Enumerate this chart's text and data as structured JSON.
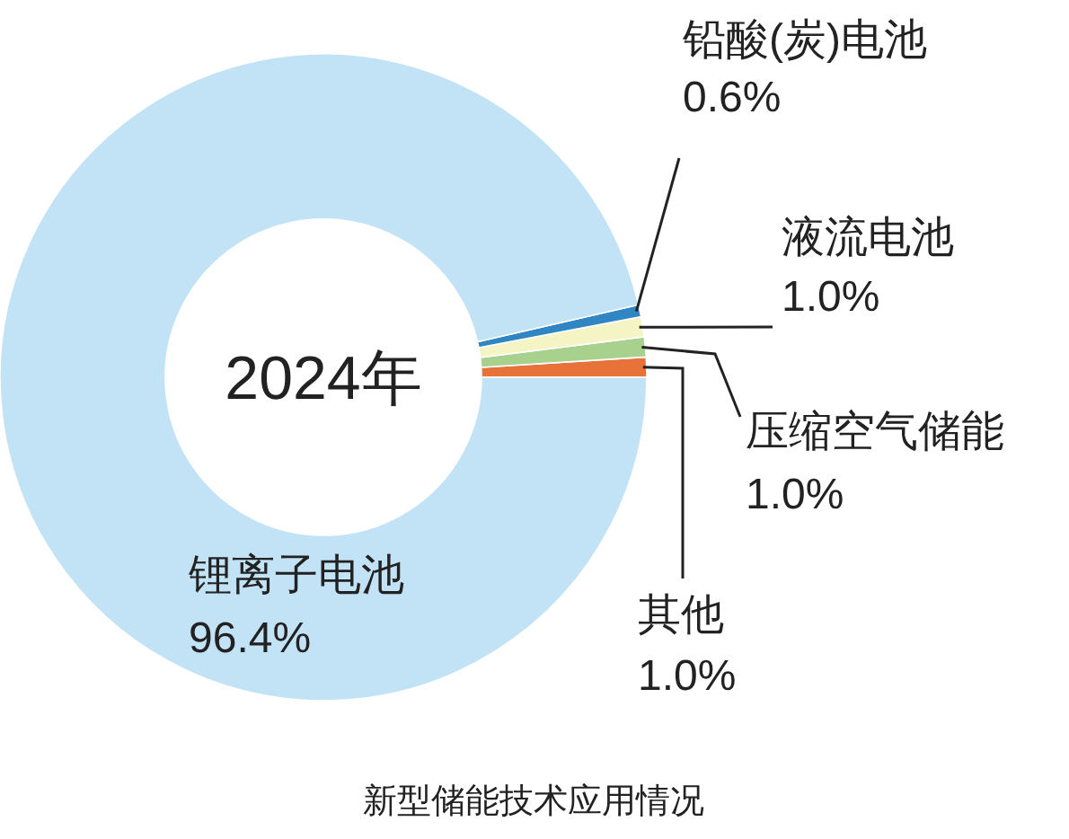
{
  "chart_data": {
    "type": "donut",
    "title": "新型储能技术应用情况",
    "subtitle": "2024年",
    "categories": [
      "其他",
      "压缩空气储能",
      "液流电池",
      "铅酸(炭)电池",
      "锂离子电池"
    ],
    "values": [
      1.0,
      1.0,
      1.0,
      0.6,
      96.4
    ],
    "colors": [
      "#e8733a",
      "#a9d18e",
      "#f4f4c4",
      "#2f86c2",
      "#c2e2f6"
    ],
    "value_labels": [
      "1.0%",
      "1.0%",
      "1.0%",
      "0.6%",
      "96.4%"
    ]
  }
}
